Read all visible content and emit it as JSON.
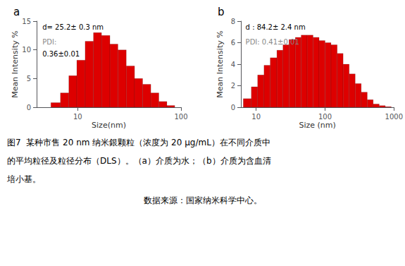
{
  "chart_data": [
    {
      "type": "histogram",
      "title": "a",
      "annotations": [
        "d= 25.2± 0.3 nm",
        "PDI:",
        "0.36±0.01"
      ],
      "xlabel": "Size(nm)",
      "ylabel": "Mean Intensity %",
      "bins": [
        5.5,
        6.8,
        8.2,
        9.8,
        11.8,
        14.2,
        17.0,
        20.5,
        24.5,
        29.5,
        35.5,
        42.5,
        51.0,
        61.0,
        73.0,
        87.0
      ],
      "values": [
        0.8,
        2.5,
        5.5,
        8.2,
        11.5,
        13.0,
        12.5,
        11.0,
        10.0,
        7.2,
        5.0,
        4.0,
        2.5,
        1.0,
        0.3
      ],
      "color": "#dd0000",
      "log": "x",
      "grid": false,
      "xlim": [
        4,
        100
      ],
      "xticks": [
        10,
        100
      ],
      "ylim": [
        0,
        15
      ],
      "yticks": [
        0,
        5,
        10,
        15
      ]
    },
    {
      "type": "histogram",
      "title": "b",
      "annotations": [
        "d : 84.2± 2.4 nm",
        "PDI: 0.41±0.01"
      ],
      "xlabel": "Size (nm)",
      "ylabel": "Mean Intensity %",
      "bins": [
        6.5,
        8.5,
        10.5,
        13.0,
        16.0,
        20.0,
        24.5,
        30.0,
        37.0,
        45.0,
        55.0,
        67.0,
        82.0,
        100.0,
        122.0,
        150.0,
        183.0,
        224.0,
        274.0,
        335.0,
        410.0,
        500.0,
        612.0,
        749.0,
        916.0
      ],
      "values": [
        0.8,
        1.9,
        3.0,
        3.9,
        4.6,
        5.3,
        5.8,
        6.3,
        6.5,
        6.7,
        6.7,
        6.5,
        6.2,
        6.0,
        5.8,
        5.0,
        4.0,
        3.1,
        2.2,
        1.4,
        0.7,
        0.3,
        0.15,
        0.05
      ],
      "color": "#dd0000",
      "log": "x",
      "grid": false,
      "xlim": [
        6,
        1000
      ],
      "xticks": [
        10,
        100,
        1000
      ],
      "ylim": [
        0,
        8
      ],
      "yticks": [
        0,
        2,
        4,
        6,
        8
      ]
    }
  ],
  "caption": [
    "图7  某种市售 20 nm 纳米銀颗粒（浓度为 20 μg/mL）在不同介质中",
    "的平均粒径及粒径分布（DLS）。（a）介质为水；（b）介质为含血清",
    "培小基。",
    "数据来源：国家纳米科学中心。"
  ]
}
